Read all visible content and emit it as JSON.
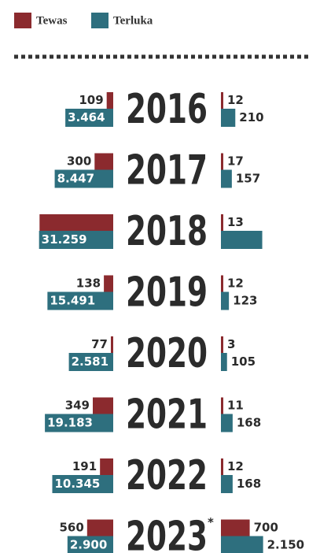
{
  "chart_data": {
    "type": "butterfly-bar",
    "categories": [
      "2016",
      "2017",
      "2018",
      "2019",
      "2020",
      "2021",
      "2022",
      "2023"
    ],
    "note": "*",
    "log_scale": true,
    "legend": [
      {
        "name": "Tewas",
        "color": "#8b2a2e"
      },
      {
        "name": "Terluka",
        "color": "#2e6f7e"
      }
    ],
    "sides": [
      {
        "series": [
          {
            "name": "Tewas",
            "color": "#8b2a2e",
            "values": [
              109,
              300,
              30000,
              138,
              77,
              349,
              191,
              560
            ],
            "value_labels": [
              "109",
              "300",
              null,
              "138",
              "77",
              "349",
              "191",
              "560"
            ]
          },
          {
            "name": "Terluka",
            "color": "#2e6f7e",
            "values": [
              3464,
              8447,
              31259,
              15491,
              2581,
              19183,
              10345,
              2900
            ],
            "value_labels": [
              "3.464",
              "8.447",
              "31.259",
              "15.491",
              "2.581",
              "19.183",
              "10.345",
              "2.900"
            ]
          }
        ]
      },
      {
        "series": [
          {
            "name": "Tewas",
            "color": "#8b2a2e",
            "values": [
              12,
              17,
              13,
              12,
              3,
              11,
              12,
              700
            ],
            "value_labels": [
              "12",
              "17",
              "13",
              "12",
              "3",
              "11",
              "12",
              "700"
            ]
          },
          {
            "name": "Terluka",
            "color": "#2e6f7e",
            "values": [
              210,
              157,
              2000,
              123,
              105,
              168,
              168,
              2150
            ],
            "value_labels": [
              "210",
              "157",
              null,
              "123",
              "105",
              "168",
              "168",
              "2.150"
            ]
          }
        ]
      }
    ]
  }
}
